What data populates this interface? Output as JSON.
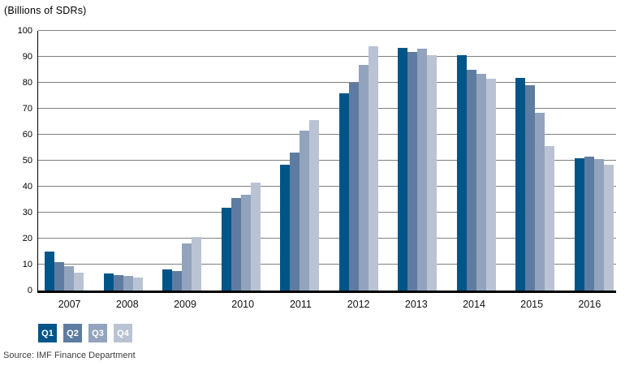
{
  "chart_data": {
    "type": "bar",
    "title": "(Billions of SDRs)",
    "source": "Source: IMF Finance Department",
    "categories": [
      "2007",
      "2008",
      "2009",
      "2010",
      "2011",
      "2012",
      "2013",
      "2014",
      "2015",
      "2016"
    ],
    "series": [
      {
        "name": "Q1",
        "color": "#005588",
        "values": [
          15,
          6.5,
          8,
          32,
          48.5,
          76,
          93.5,
          90.5,
          82,
          51
        ]
      },
      {
        "name": "Q2",
        "color": "#5E7CA1",
        "values": [
          11,
          6,
          7.5,
          35.5,
          53,
          80,
          92,
          85,
          79,
          51.5
        ]
      },
      {
        "name": "Q3",
        "color": "#92A4BD",
        "values": [
          9.5,
          5.5,
          18,
          37,
          61.5,
          87,
          93,
          83.5,
          68.5,
          50.5
        ]
      },
      {
        "name": "Q4",
        "color": "#B9C3D3",
        "values": [
          7,
          5,
          20.5,
          41.5,
          65.5,
          94,
          90.5,
          81.5,
          55.5,
          48.5
        ]
      }
    ],
    "ylim": [
      0,
      100
    ],
    "ytick_step": 10,
    "grid": true,
    "gridline_color": "#808080",
    "legend_position": "bottom-left",
    "legend_labels": [
      "Q1",
      "Q2",
      "Q3",
      "Q4"
    ]
  }
}
